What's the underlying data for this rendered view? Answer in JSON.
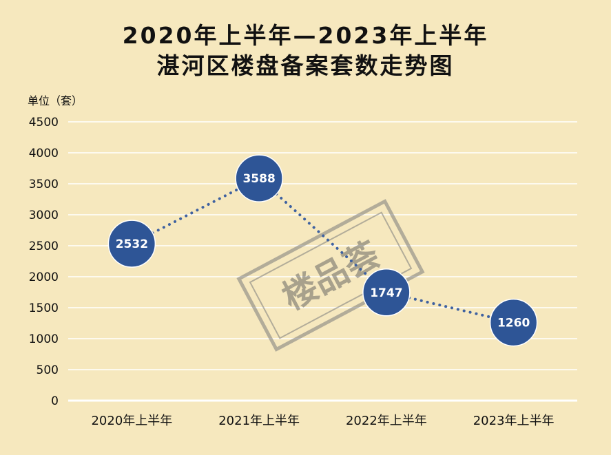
{
  "title": {
    "line1": "2020年上半年—2023年上半年",
    "line2": "湛河区楼盘备案套数走势图"
  },
  "watermark": "楼品荟",
  "colors": {
    "background": "#F6E8BE",
    "gridline": "#FFFFFF",
    "marker_fill": "#2E5596",
    "connector": "#3E61A0",
    "axis": "#FFFFFF"
  },
  "chart_data": {
    "type": "line",
    "ylabel": "单位（套）",
    "categories": [
      "2020年上半年",
      "2021年上半年",
      "2022年上半年",
      "2023年上半年"
    ],
    "series": [
      {
        "values": [
          2532,
          3588,
          1747,
          1260
        ]
      }
    ],
    "ylim": [
      0,
      4500
    ],
    "yticks": [
      0,
      500,
      1000,
      1500,
      2000,
      2500,
      3000,
      3500,
      4000,
      4500
    ],
    "line_style": "dotted",
    "markers": "large-circle",
    "data_labels": true,
    "grid": true,
    "legend": "none"
  }
}
